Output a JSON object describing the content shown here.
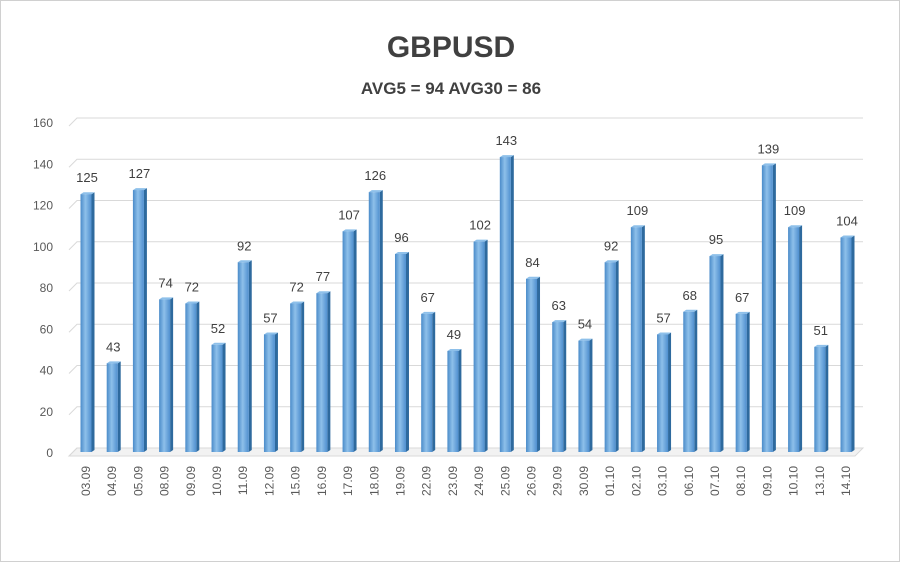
{
  "chart_data": {
    "type": "bar",
    "title": "GBPUSD",
    "subtitle": "AVG5 = 94 AVG30 = 86",
    "xlabel": "",
    "ylabel": "",
    "ylim": [
      0,
      160
    ],
    "yticks": [
      0,
      20,
      40,
      60,
      80,
      100,
      120,
      140,
      160
    ],
    "grid": true,
    "categories": [
      "03.09",
      "04.09",
      "05.09",
      "08.09",
      "09.09",
      "10.09",
      "11.09",
      "12.09",
      "15.09",
      "16.09",
      "17.09",
      "18.09",
      "19.09",
      "22.09",
      "23.09",
      "24.09",
      "25.09",
      "26.09",
      "29.09",
      "30.09",
      "01.10",
      "02.10",
      "03.10",
      "06.10",
      "07.10",
      "08.10",
      "09.10",
      "10.10",
      "13.10",
      "14.10"
    ],
    "values": [
      125,
      43,
      127,
      74,
      72,
      52,
      92,
      57,
      72,
      77,
      107,
      126,
      96,
      67,
      49,
      102,
      143,
      84,
      63,
      54,
      92,
      109,
      57,
      68,
      95,
      67,
      139,
      109,
      51,
      104
    ],
    "colors": {
      "bar": "#5b9bd5",
      "bar_light": "#8ec0ea",
      "bar_side": "#2e6a9e",
      "grid": "#d9d9d9"
    }
  }
}
